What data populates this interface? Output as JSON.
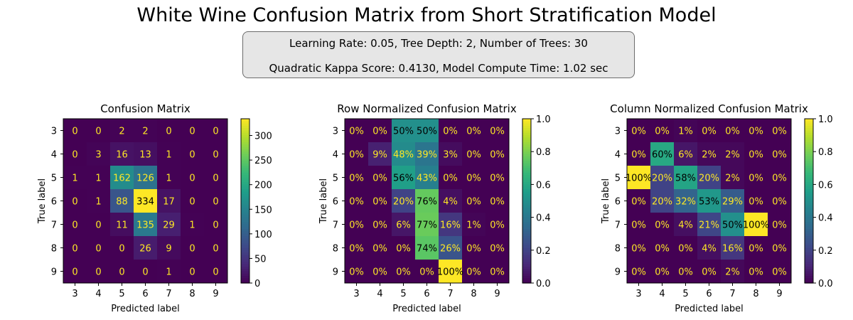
{
  "page": {
    "title": "White Wine Confusion Matrix from Short Stratification Model",
    "info_line_1": "Learning Rate: 0.05, Tree Depth: 2, Number of Trees: 30",
    "info_line_2": "Quadratic Kappa Score: 0.4130,  Model Compute Time: 1.02 sec"
  },
  "chart_data": [
    {
      "type": "heatmap",
      "title": "Confusion Matrix",
      "xlabel": "Predicted label",
      "ylabel": "True label",
      "x_categories": [
        "3",
        "4",
        "5",
        "6",
        "7",
        "8",
        "9"
      ],
      "y_categories": [
        "3",
        "4",
        "5",
        "6",
        "7",
        "8",
        "9"
      ],
      "values": [
        [
          0,
          0,
          2,
          2,
          0,
          0,
          0
        ],
        [
          0,
          3,
          16,
          13,
          1,
          0,
          0
        ],
        [
          1,
          1,
          162,
          126,
          1,
          0,
          0
        ],
        [
          0,
          1,
          88,
          334,
          17,
          0,
          0
        ],
        [
          0,
          0,
          11,
          135,
          29,
          1,
          0
        ],
        [
          0,
          0,
          0,
          26,
          9,
          0,
          0
        ],
        [
          0,
          0,
          0,
          0,
          1,
          0,
          0
        ]
      ],
      "cell_labels": [
        [
          "0",
          "0",
          "2",
          "2",
          "0",
          "0",
          "0"
        ],
        [
          "0",
          "3",
          "16",
          "13",
          "1",
          "0",
          "0"
        ],
        [
          "1",
          "1",
          "162",
          "126",
          "1",
          "0",
          "0"
        ],
        [
          "0",
          "1",
          "88",
          "334",
          "17",
          "0",
          "0"
        ],
        [
          "0",
          "0",
          "11",
          "135",
          "29",
          "1",
          "0"
        ],
        [
          "0",
          "0",
          "0",
          "26",
          "9",
          "0",
          "0"
        ],
        [
          "0",
          "0",
          "0",
          "0",
          "1",
          "0",
          "0"
        ]
      ],
      "colormap": "viridis",
      "colorbar": {
        "range": [
          0,
          334
        ],
        "ticks": [
          "0",
          "50",
          "100",
          "150",
          "200",
          "250",
          "300"
        ],
        "tick_values": [
          0,
          50,
          100,
          150,
          200,
          250,
          300
        ]
      }
    },
    {
      "type": "heatmap",
      "title": "Row Normalized Confusion Matrix",
      "xlabel": "Predicted label",
      "ylabel": "True label",
      "x_categories": [
        "3",
        "4",
        "5",
        "6",
        "7",
        "8",
        "9"
      ],
      "y_categories": [
        "3",
        "4",
        "5",
        "6",
        "7",
        "8",
        "9"
      ],
      "values": [
        [
          0,
          0,
          0.5,
          0.5,
          0,
          0,
          0
        ],
        [
          0,
          0.09,
          0.48,
          0.39,
          0.03,
          0,
          0
        ],
        [
          0,
          0,
          0.56,
          0.43,
          0,
          0,
          0
        ],
        [
          0,
          0,
          0.2,
          0.76,
          0.04,
          0,
          0
        ],
        [
          0,
          0,
          0.06,
          0.77,
          0.16,
          0.01,
          0
        ],
        [
          0,
          0,
          0,
          0.74,
          0.26,
          0,
          0
        ],
        [
          0,
          0,
          0,
          0,
          1.0,
          0,
          0
        ]
      ],
      "cell_labels": [
        [
          "0%",
          "0%",
          "50%",
          "50%",
          "0%",
          "0%",
          "0%"
        ],
        [
          "0%",
          "9%",
          "48%",
          "39%",
          "3%",
          "0%",
          "0%"
        ],
        [
          "0%",
          "0%",
          "56%",
          "43%",
          "0%",
          "0%",
          "0%"
        ],
        [
          "0%",
          "0%",
          "20%",
          "76%",
          "4%",
          "0%",
          "0%"
        ],
        [
          "0%",
          "0%",
          "6%",
          "77%",
          "16%",
          "1%",
          "0%"
        ],
        [
          "0%",
          "0%",
          "0%",
          "74%",
          "26%",
          "0%",
          "0%"
        ],
        [
          "0%",
          "0%",
          "0%",
          "0%",
          "100%",
          "0%",
          "0%"
        ]
      ],
      "colormap": "viridis",
      "colorbar": {
        "range": [
          0,
          1
        ],
        "ticks": [
          "0.0",
          "0.2",
          "0.4",
          "0.6",
          "0.8",
          "1.0"
        ],
        "tick_values": [
          0,
          0.2,
          0.4,
          0.6,
          0.8,
          1.0
        ]
      }
    },
    {
      "type": "heatmap",
      "title": "Column Normalized Confusion Matrix",
      "xlabel": "Predicted label",
      "ylabel": "True label",
      "x_categories": [
        "3",
        "4",
        "5",
        "6",
        "7",
        "8",
        "9"
      ],
      "y_categories": [
        "3",
        "4",
        "5",
        "6",
        "7",
        "8",
        "9"
      ],
      "values": [
        [
          0,
          0,
          0.01,
          0,
          0,
          0,
          0
        ],
        [
          0,
          0.6,
          0.06,
          0.02,
          0.02,
          0,
          0
        ],
        [
          1.0,
          0.2,
          0.58,
          0.2,
          0.02,
          0,
          0
        ],
        [
          0,
          0.2,
          0.32,
          0.53,
          0.29,
          0,
          0
        ],
        [
          0,
          0,
          0.04,
          0.21,
          0.5,
          1.0,
          0
        ],
        [
          0,
          0,
          0,
          0.04,
          0.16,
          0,
          0
        ],
        [
          0,
          0,
          0,
          0,
          0.02,
          0,
          0
        ]
      ],
      "cell_labels": [
        [
          "0%",
          "0%",
          "1%",
          "0%",
          "0%",
          "0%",
          "0%"
        ],
        [
          "0%",
          "60%",
          "6%",
          "2%",
          "2%",
          "0%",
          "0%"
        ],
        [
          "100%",
          "20%",
          "58%",
          "20%",
          "2%",
          "0%",
          "0%"
        ],
        [
          "0%",
          "20%",
          "32%",
          "53%",
          "29%",
          "0%",
          "0%"
        ],
        [
          "0%",
          "0%",
          "4%",
          "21%",
          "50%",
          "100%",
          "0%"
        ],
        [
          "0%",
          "0%",
          "0%",
          "4%",
          "16%",
          "0%",
          "0%"
        ],
        [
          "0%",
          "0%",
          "0%",
          "0%",
          "2%",
          "0%",
          "0%"
        ]
      ],
      "colormap": "viridis",
      "colorbar": {
        "range": [
          0,
          1
        ],
        "ticks": [
          "0.0",
          "0.2",
          "0.4",
          "0.6",
          "0.8",
          "1.0"
        ],
        "tick_values": [
          0,
          0.2,
          0.4,
          0.6,
          0.8,
          1.0
        ]
      }
    }
  ]
}
